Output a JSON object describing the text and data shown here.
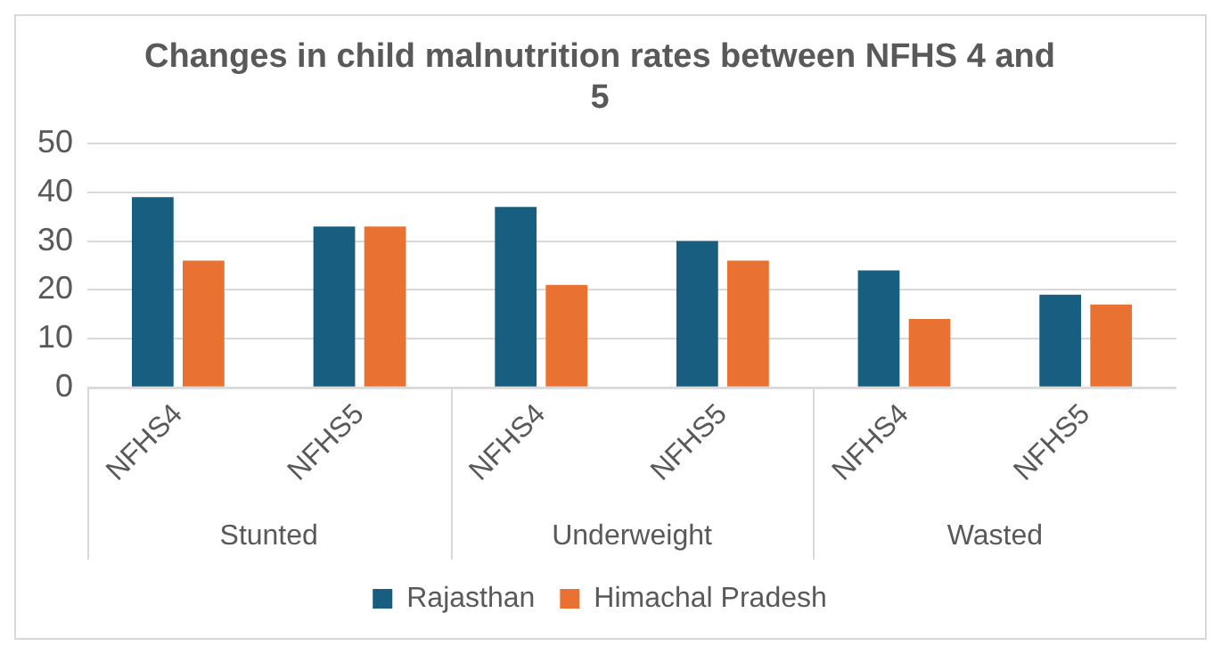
{
  "chart_data": {
    "type": "bar",
    "title": "Changes in child malnutrition rates between NFHS 4 and 5",
    "categories": [
      "NFHS4",
      "NFHS5",
      "NFHS4",
      "NFHS5",
      "NFHS4",
      "NFHS5"
    ],
    "series": [
      {
        "name": "Rajasthan",
        "color": "#175e80",
        "values": [
          39,
          33,
          37,
          30,
          24,
          19
        ]
      },
      {
        "name": "Himachal Pradesh",
        "color": "#e97132",
        "values": [
          26,
          33,
          21,
          26,
          14,
          17
        ]
      }
    ],
    "annotations": [
      "Stunted",
      "Underweight",
      "Wasted"
    ],
    "ylim": [
      0,
      50
    ],
    "yticks": [
      0,
      10,
      20,
      30,
      40,
      50
    ],
    "grid": "y",
    "legend": "bottom"
  }
}
